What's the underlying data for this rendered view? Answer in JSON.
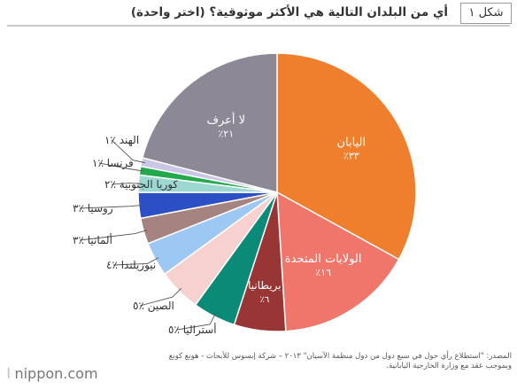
{
  "header": {
    "figure_label": "شكل ١",
    "title": "أي من البلدان التالية هي الأكثر موثوقية؟ (اختر واحدة)"
  },
  "chart_data": {
    "type": "pie",
    "title": "أي من البلدان التالية هي الأكثر موثوقية؟ (اختر واحدة)",
    "slices": [
      {
        "label": "اليابان",
        "value_label": "٪٣٣",
        "value": 33,
        "color": "#f07f2d",
        "label_color": "#ffffff"
      },
      {
        "label": "الولايات المتحدة",
        "value_label": "٪١٦",
        "value": 16,
        "color": "#f0756b",
        "label_color": "#ffffff"
      },
      {
        "label": "بريطانيا",
        "value_label": "٪٦",
        "value": 6,
        "color": "#983535",
        "label_color": "#ffffff"
      },
      {
        "label": "أستراليا",
        "value_label": "٪٥",
        "value": 5,
        "color": "#0b8a78",
        "label_color": "#333333"
      },
      {
        "label": "الصين",
        "value_label": "٪٥",
        "value": 5,
        "color": "#f7d1cf",
        "label_color": "#333333"
      },
      {
        "label": "نيوزيلندا",
        "value_label": "٪٤",
        "value": 4,
        "color": "#9cc8f3",
        "label_color": "#333333"
      },
      {
        "label": "ألمانيا",
        "value_label": "٪٣",
        "value": 3,
        "color": "#a58381",
        "label_color": "#333333"
      },
      {
        "label": "روسيا",
        "value_label": "٪٣",
        "value": 3,
        "color": "#2b50c6",
        "label_color": "#333333"
      },
      {
        "label": "كوريا الجنوبية",
        "value_label": "٪٢",
        "value": 2,
        "color": "#9cd7d0",
        "label_color": "#333333"
      },
      {
        "label": "فرنسا",
        "value_label": "٪١",
        "value": 1,
        "color": "#23a94b",
        "label_color": "#333333"
      },
      {
        "label": "الهند",
        "value_label": "٪١",
        "value": 1,
        "color": "#c9c7e6",
        "label_color": "#333333"
      },
      {
        "label": "لا أعرف",
        "value_label": "٪٢١",
        "value": 21,
        "color": "#8c8895",
        "label_color": "#ffffff"
      }
    ]
  },
  "footer": {
    "source_line1": "المصدر: \"استطلاع رأي حول في سبع دول من دول منظمة الآسيان\" ٢٠١٣ – شركة إبسوس للأبحاث - هونغ كونغ",
    "source_line2": "وبموجب عقد مع وزارة الخارجية اليابانية.",
    "logo_text": "nippon.com"
  }
}
